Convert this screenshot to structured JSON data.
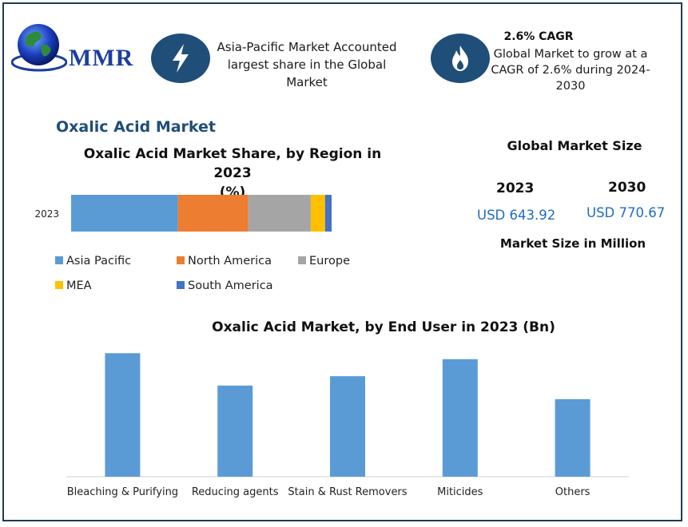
{
  "logo": {
    "text": "MMR"
  },
  "highlights": {
    "region": {
      "icon": "lightning-icon",
      "text_lines": [
        "Asia-Pacific Market Accounted",
        "largest share in the Global",
        "Market"
      ]
    },
    "cagr": {
      "icon": "flame-icon",
      "title": "2.6% CAGR",
      "text_lines": [
        "Global Market to grow at a",
        "CAGR of 2.6% during 2024-",
        "2030"
      ]
    }
  },
  "section_title": "Oxalic Acid Market",
  "market_size": {
    "title": "Global Market Size",
    "year_2023": "2023",
    "year_2030": "2030",
    "value_2023": "USD 643.92",
    "value_2030": "USD 770.67",
    "unit_label": "Market Size in Million"
  },
  "chart_data": [
    {
      "type": "bar",
      "orientation": "horizontal-stacked",
      "title_lines": [
        "Oxalic Acid Market Share, by Region in 2023",
        "(%)"
      ],
      "categories": [
        "2023"
      ],
      "series": [
        {
          "name": "Asia Pacific",
          "values": [
            41
          ],
          "color": "#5b9bd5"
        },
        {
          "name": "North America",
          "values": [
            27
          ],
          "color": "#ed7d31"
        },
        {
          "name": "Europe",
          "values": [
            24
          ],
          "color": "#a5a5a5"
        },
        {
          "name": "MEA",
          "values": [
            5.5
          ],
          "color": "#ffc000"
        },
        {
          "name": "South America",
          "values": [
            2.5
          ],
          "color": "#4472c4"
        }
      ],
      "legend_position": "bottom"
    },
    {
      "type": "bar",
      "title": "Oxalic Acid Market, by End User  in 2023 (Bn)",
      "categories": [
        "Bleaching & Purifying",
        "Reducing agents",
        "Stain & Rust Removers",
        "Miticides",
        "Others"
      ],
      "values": [
        145,
        107,
        118,
        138,
        91
      ],
      "ylim": [
        0,
        150
      ],
      "color": "#5b9bd5",
      "grid": false
    }
  ]
}
